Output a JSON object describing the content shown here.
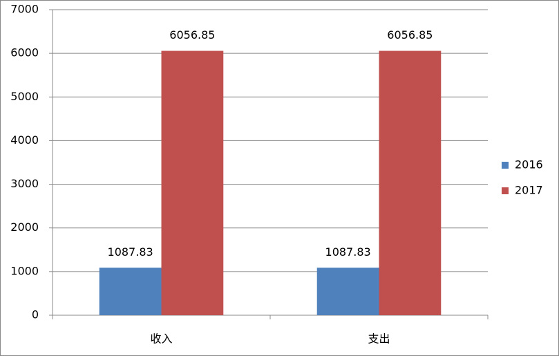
{
  "chart_data": {
    "type": "bar",
    "categories": [
      "收入",
      "支出"
    ],
    "series": [
      {
        "name": "2016",
        "color": "#4f81bd",
        "values": [
          1087.83,
          1087.83
        ]
      },
      {
        "name": "2017",
        "color": "#c0504d",
        "values": [
          6056.85,
          6056.85
        ]
      }
    ],
    "ylim": [
      0,
      7000
    ],
    "yticks": [
      0,
      1000,
      2000,
      3000,
      4000,
      5000,
      6000,
      7000
    ],
    "grid": true,
    "legend": "right"
  }
}
